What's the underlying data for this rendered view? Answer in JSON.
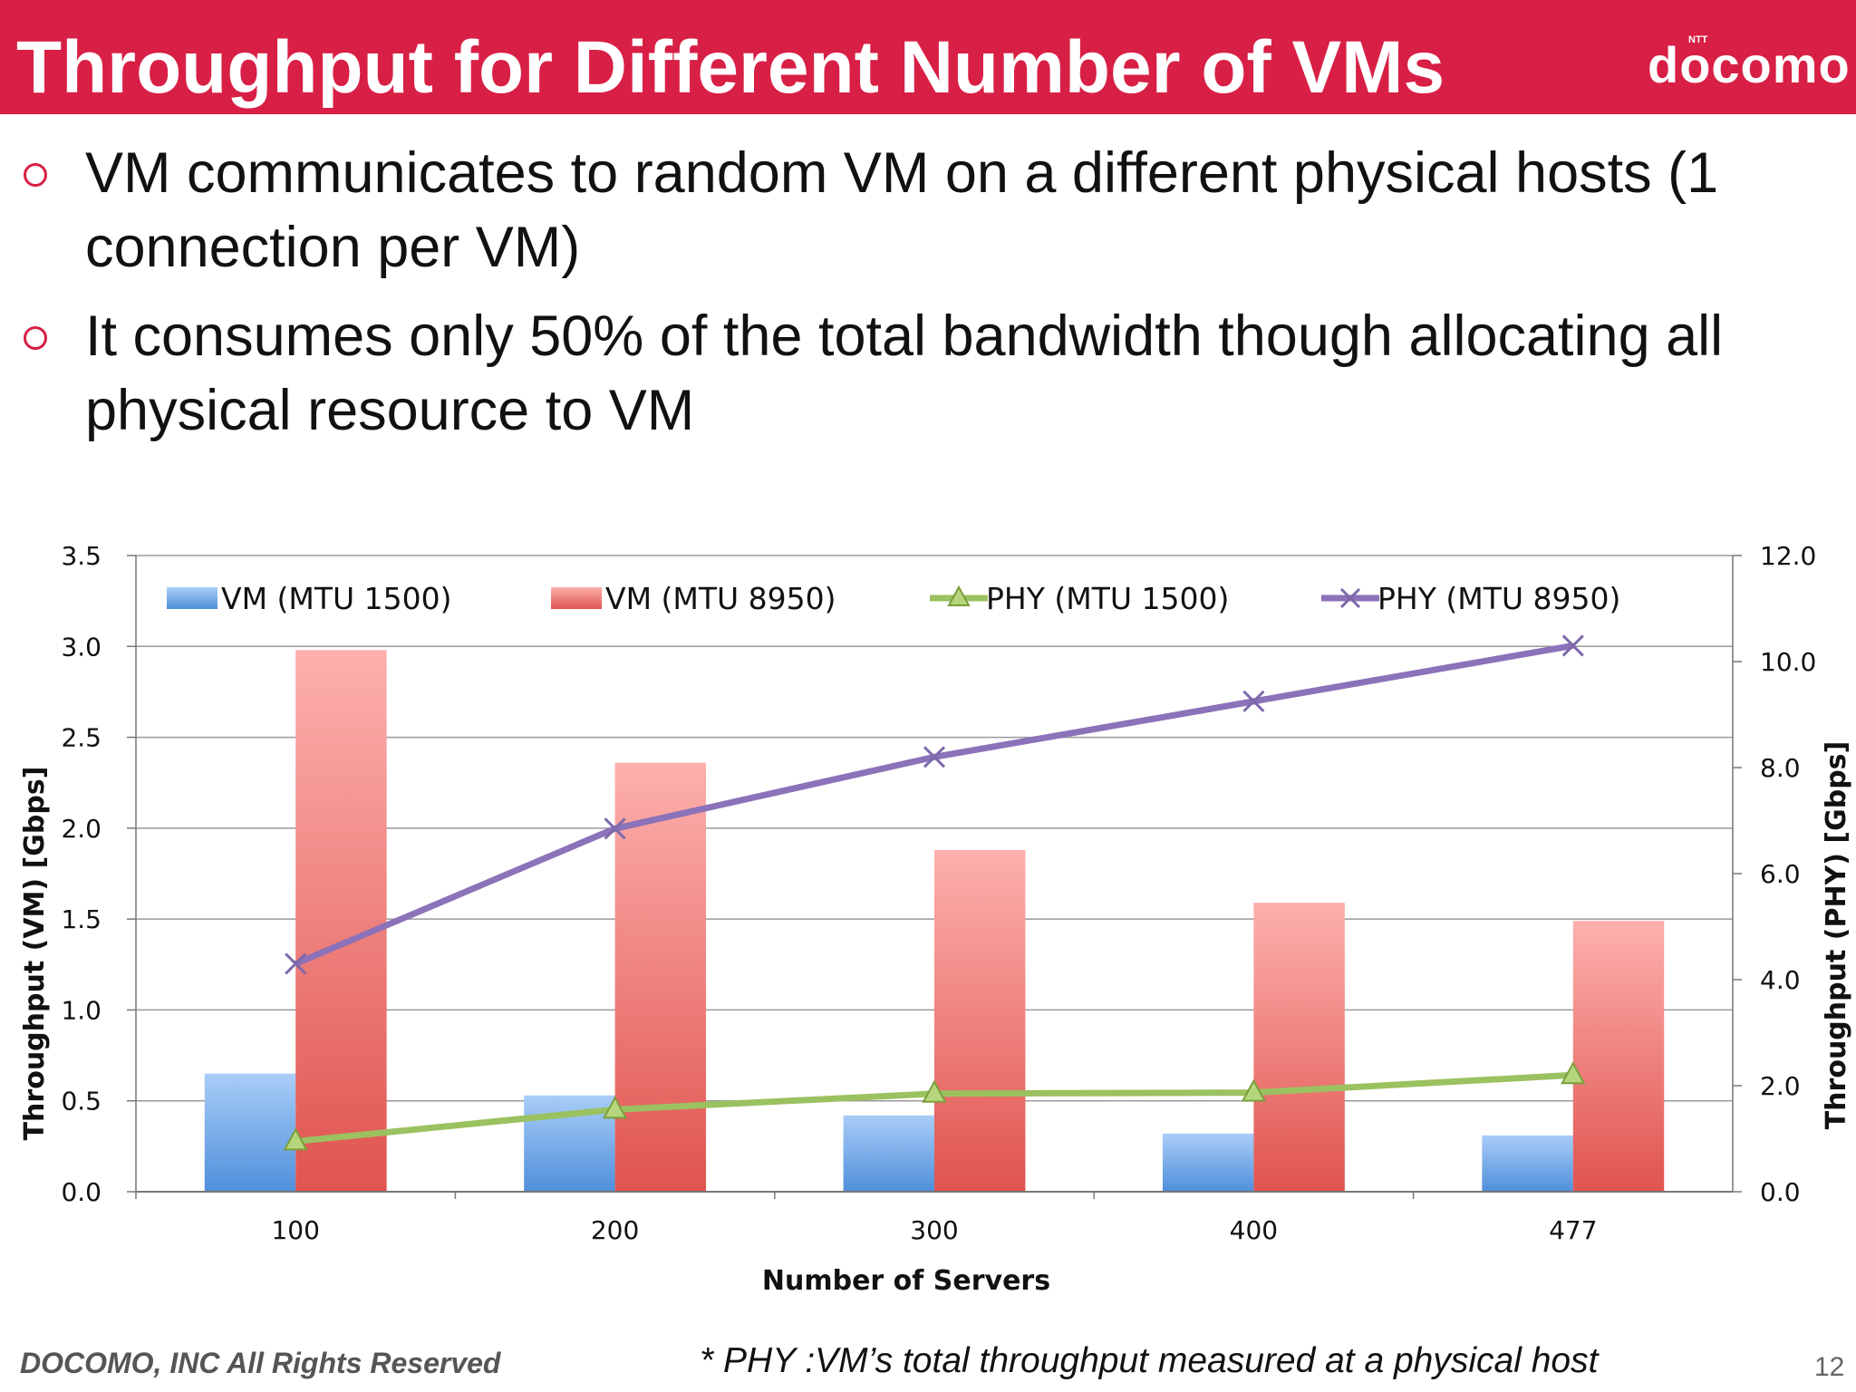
{
  "title": "Throughput for Different Number of VMs",
  "logo": {
    "small": "NTT",
    "text": "docomo"
  },
  "bullets": [
    "VM communicates to random VM on a different physical hosts (1 connection per VM)",
    "It consumes only 50% of the total bandwidth though allocating all physical resource to VM"
  ],
  "footer": {
    "copyright": "DOCOMO, INC All Rights Reserved",
    "note": "* PHY :VM’s total throughput measured at a physical host",
    "page": "12"
  },
  "colors": {
    "brand": "#d81f45",
    "vm_1500": "#6fa6e6",
    "vm_8950": "#e96a66",
    "phy_1500": "#9bc160",
    "phy_8950": "#8b72b9"
  },
  "chart_data": {
    "type": "bar",
    "categories": [
      "100",
      "200",
      "300",
      "400",
      "477"
    ],
    "xlabel": "Number of Servers",
    "ylabel": "Throughput (VM) [Gbps]",
    "y2label": "Throughput (PHY) [Gbps]",
    "ylim": [
      0,
      3.5
    ],
    "y2lim": [
      0,
      12
    ],
    "yticks": [
      "0.0",
      "0.5",
      "1.0",
      "1.5",
      "2.0",
      "2.5",
      "3.0",
      "3.5"
    ],
    "y2ticks": [
      "0.0",
      "2.0",
      "4.0",
      "6.0",
      "8.0",
      "10.0",
      "12.0"
    ],
    "grid": true,
    "legend_position": "top",
    "series": [
      {
        "name": "VM (MTU 1500)",
        "type": "bar",
        "axis": "left",
        "values": [
          0.65,
          0.53,
          0.42,
          0.32,
          0.31
        ]
      },
      {
        "name": "VM (MTU 8950)",
        "type": "bar",
        "axis": "left",
        "values": [
          2.98,
          2.36,
          1.88,
          1.59,
          1.49
        ]
      },
      {
        "name": "PHY (MTU 1500)",
        "type": "line",
        "axis": "right",
        "marker": "triangle",
        "values": [
          0.95,
          1.55,
          1.85,
          1.87,
          2.2
        ]
      },
      {
        "name": "PHY (MTU 8950)",
        "type": "line",
        "axis": "right",
        "marker": "x",
        "values": [
          4.3,
          6.85,
          8.2,
          9.25,
          10.3
        ]
      }
    ]
  }
}
